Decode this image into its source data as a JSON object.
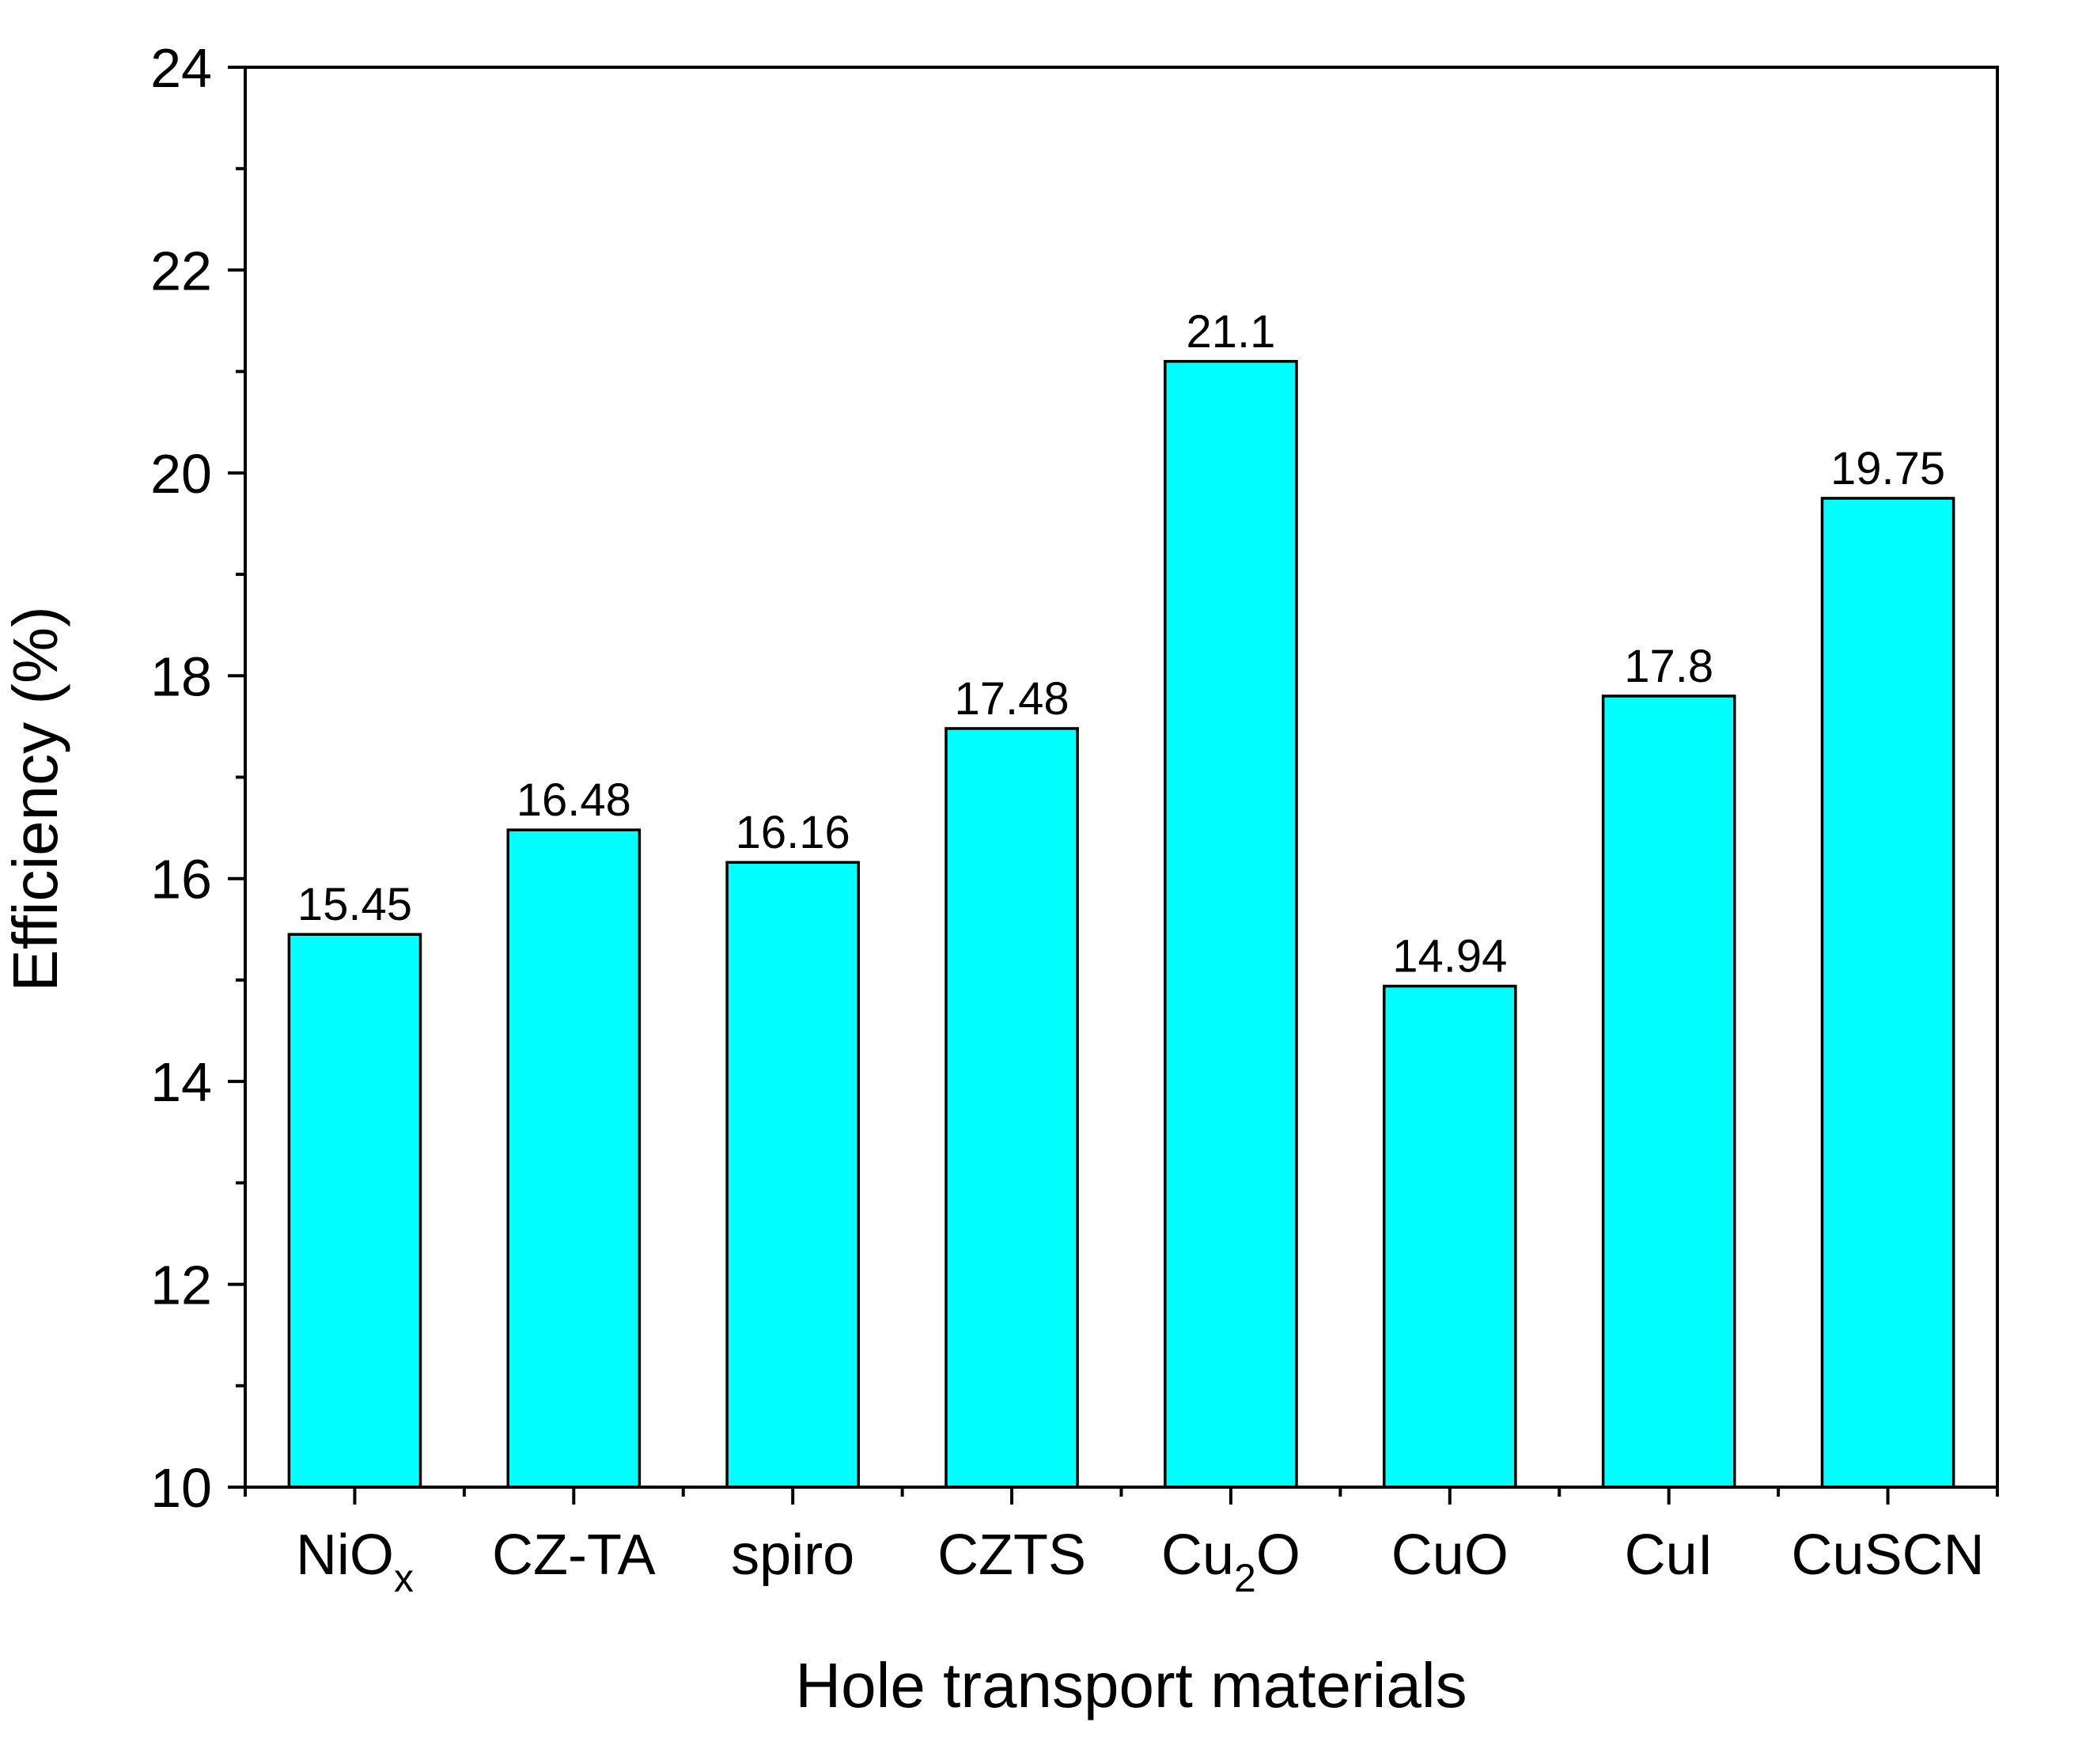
{
  "chart_data": {
    "type": "bar",
    "title": "",
    "xlabel": "Hole transport materials",
    "ylabel": "Efficiency (%)",
    "ylim": [
      10,
      24
    ],
    "yticks": [
      10,
      12,
      14,
      16,
      18,
      20,
      22,
      24
    ],
    "grid": false,
    "categories": [
      {
        "label": "NiOx",
        "base": "NiO",
        "sub": "x",
        "post": ""
      },
      {
        "label": "CZ-TA",
        "base": "CZ-TA",
        "sub": "",
        "post": ""
      },
      {
        "label": "spiro",
        "base": "spiro",
        "sub": "",
        "post": ""
      },
      {
        "label": "CZTS",
        "base": "CZTS",
        "sub": "",
        "post": ""
      },
      {
        "label": "Cu2O",
        "base": "Cu",
        "sub": "2",
        "post": "O"
      },
      {
        "label": "CuO",
        "base": "CuO",
        "sub": "",
        "post": ""
      },
      {
        "label": "CuI",
        "base": "CuI",
        "sub": "",
        "post": ""
      },
      {
        "label": "CuSCN",
        "base": "CuSCN",
        "sub": "",
        "post": ""
      }
    ],
    "values": [
      15.45,
      16.48,
      16.16,
      17.48,
      21.1,
      14.94,
      17.8,
      19.75
    ],
    "value_labels": [
      "15.45",
      "16.48",
      "16.16",
      "17.48",
      "21.1",
      "14.94",
      "17.8",
      "19.75"
    ],
    "bar_color": "#00ffff",
    "edge_color": "#000000"
  }
}
